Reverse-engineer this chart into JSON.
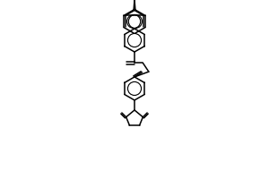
{
  "bg_color": "#ffffff",
  "line_color": "#000000",
  "line_width": 1.1,
  "figsize": [
    3.0,
    2.0
  ],
  "dpi": 100
}
